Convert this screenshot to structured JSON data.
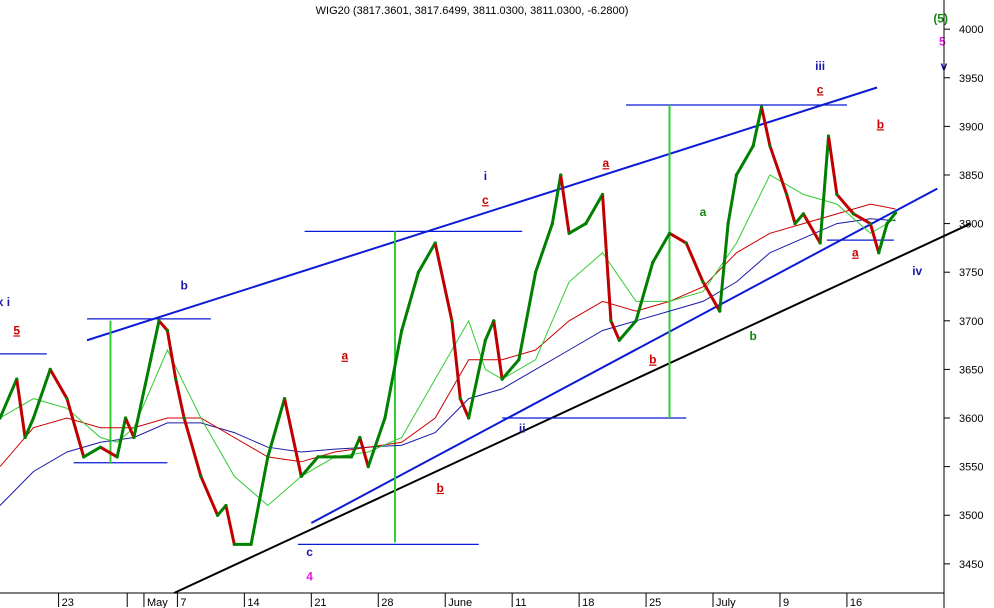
{
  "title": "WIG20 (3817.3601, 3817.6499, 3811.0300, 3811.0300, -6.2800)",
  "colors": {
    "price_candle": "#008000",
    "price_down": "#c00000",
    "ma_fast": "#33cc33",
    "ma_mid": "#cc0000",
    "ma_slow": "#1a1aa6",
    "channel": "#0b1bd6",
    "support": "#000000",
    "green_marker": "#33cc33",
    "wave_red": "#cc0000",
    "wave_blue": "#1a1aa6",
    "wave_green": "#118811",
    "wave_magenta": "#e61ae6"
  },
  "chart_data": {
    "type": "line",
    "title": "WIG20 (3817.3601, 3817.6499, 3811.0300, 3811.0300, -6.2800)",
    "xlabel": "",
    "ylabel": "",
    "ylim": [
      3420,
      4030
    ],
    "yticks": [
      3450,
      3500,
      3550,
      3600,
      3650,
      3700,
      3750,
      3800,
      3850,
      3900,
      3950,
      4000
    ],
    "x_range": [
      0,
      56.4
    ],
    "xticks": [
      {
        "label": "23",
        "x": 3.5
      },
      {
        "label": "",
        "x": 7.6
      },
      {
        "label": "May",
        "x": 8.6
      },
      {
        "label": "7",
        "x": 10.6
      },
      {
        "label": "14",
        "x": 14.6
      },
      {
        "label": "21",
        "x": 18.6
      },
      {
        "label": "28",
        "x": 22.6
      },
      {
        "label": "June",
        "x": 26.6
      },
      {
        "label": "11",
        "x": 30.6
      },
      {
        "label": "18",
        "x": 34.6
      },
      {
        "label": "25",
        "x": 38.6
      },
      {
        "label": "July",
        "x": 42.6
      },
      {
        "label": "9",
        "x": 46.6
      },
      {
        "label": "16",
        "x": 50.6
      }
    ],
    "grid": false,
    "series": [
      {
        "name": "WIG20",
        "x": [
          0,
          1,
          1.5,
          2,
          3,
          4,
          5,
          6,
          7,
          7.5,
          8,
          9,
          9.5,
          10,
          10.5,
          11,
          12,
          13,
          13.5,
          14,
          15,
          16,
          17,
          18,
          19,
          20,
          21,
          21.5,
          22,
          23,
          24,
          25,
          26,
          27,
          27.5,
          28,
          29,
          29.5,
          30,
          31,
          32,
          33,
          33.5,
          34,
          35,
          36,
          36.5,
          37,
          38,
          39,
          40,
          41,
          42,
          43,
          43.5,
          44,
          45,
          45.5,
          46,
          47,
          47.5,
          48,
          49,
          49.5,
          50,
          51,
          52,
          52.5,
          53,
          53.5
        ],
        "y": [
          3600,
          3640,
          3580,
          3600,
          3650,
          3620,
          3560,
          3570,
          3560,
          3600,
          3580,
          3660,
          3700,
          3690,
          3640,
          3600,
          3540,
          3500,
          3510,
          3470,
          3470,
          3560,
          3620,
          3540,
          3560,
          3560,
          3560,
          3580,
          3550,
          3600,
          3690,
          3750,
          3780,
          3700,
          3620,
          3600,
          3680,
          3700,
          3640,
          3660,
          3750,
          3800,
          3850,
          3790,
          3800,
          3830,
          3700,
          3680,
          3700,
          3760,
          3790,
          3780,
          3740,
          3710,
          3800,
          3850,
          3880,
          3920,
          3880,
          3830,
          3800,
          3810,
          3780,
          3890,
          3830,
          3810,
          3800,
          3770,
          3800,
          3811
        ]
      },
      {
        "name": "",
        "x": [
          0,
          2,
          4,
          6,
          7,
          8,
          10,
          12,
          14,
          16,
          18,
          20,
          22,
          24,
          26,
          28,
          29,
          30,
          32,
          34,
          36,
          38,
          40,
          42,
          44,
          46,
          48,
          50,
          52,
          53.5
        ],
        "y": [
          3600,
          3620,
          3610,
          3580,
          3575,
          3590,
          3670,
          3600,
          3540,
          3510,
          3540,
          3560,
          3565,
          3580,
          3640,
          3700,
          3650,
          3640,
          3660,
          3740,
          3770,
          3720,
          3720,
          3730,
          3780,
          3850,
          3830,
          3820,
          3790,
          3805
        ]
      },
      {
        "name": "",
        "x": [
          0,
          2,
          4,
          6,
          8,
          10,
          12,
          14,
          16,
          18,
          20,
          22,
          24,
          26,
          28,
          30,
          32,
          34,
          36,
          38,
          40,
          42,
          44,
          46,
          48,
          50,
          52,
          53.5
        ],
        "y": [
          3550,
          3590,
          3600,
          3590,
          3590,
          3600,
          3600,
          3580,
          3560,
          3555,
          3565,
          3570,
          3575,
          3600,
          3660,
          3660,
          3670,
          3700,
          3720,
          3710,
          3720,
          3735,
          3770,
          3790,
          3800,
          3810,
          3820,
          3815
        ]
      },
      {
        "name": "",
        "x": [
          0,
          2,
          4,
          6,
          8,
          10,
          12,
          14,
          16,
          18,
          20,
          22,
          24,
          26,
          28,
          30,
          32,
          34,
          36,
          38,
          40,
          42,
          44,
          46,
          48,
          50,
          52,
          53.5
        ],
        "y": [
          3510,
          3545,
          3565,
          3575,
          3580,
          3595,
          3595,
          3585,
          3570,
          3565,
          3568,
          3570,
          3572,
          3585,
          3620,
          3630,
          3650,
          3670,
          3690,
          3700,
          3710,
          3720,
          3740,
          3770,
          3785,
          3800,
          3805,
          3803
        ]
      }
    ],
    "trendlines": [
      {
        "name": "channel-upper",
        "from": [
          5.2,
          3680
        ],
        "to": [
          52.4,
          3940
        ]
      },
      {
        "name": "channel-lower",
        "from": [
          18.6,
          3492
        ],
        "to": [
          56,
          3836
        ]
      },
      {
        "name": "support",
        "from": [
          10.4,
          3420
        ],
        "to": [
          58,
          3800
        ]
      },
      {
        "name": "hline-1",
        "from": [
          0,
          3666
        ],
        "to": [
          2.8,
          3666
        ]
      },
      {
        "name": "hline-2",
        "from": [
          5.2,
          3702
        ],
        "to": [
          12.6,
          3702
        ]
      },
      {
        "name": "hline-3",
        "from": [
          4.4,
          3554
        ],
        "to": [
          10.0,
          3554
        ]
      },
      {
        "name": "hline-4",
        "from": [
          18.2,
          3792
        ],
        "to": [
          31.2,
          3792
        ]
      },
      {
        "name": "hline-5",
        "from": [
          17.8,
          3470
        ],
        "to": [
          28.6,
          3470
        ]
      },
      {
        "name": "hline-6",
        "from": [
          30.0,
          3600
        ],
        "to": [
          41.0,
          3600
        ]
      },
      {
        "name": "hline-7",
        "from": [
          37.4,
          3922
        ],
        "to": [
          50.6,
          3922
        ]
      },
      {
        "name": "hline-8",
        "from": [
          49.4,
          3783
        ],
        "to": [
          53.4,
          3783
        ]
      }
    ],
    "markers": [
      {
        "name": "green-bar-1",
        "x": 6.6,
        "from": 3553,
        "to": 3700
      },
      {
        "name": "green-bar-2",
        "x": 23.6,
        "from": 3472,
        "to": 3792
      },
      {
        "name": "green-bar-3",
        "x": 40.0,
        "from": 3600,
        "to": 3922
      }
    ],
    "annotations": [
      {
        "text": "(5)",
        "x": 56.2,
        "y": 4007,
        "color": "wave_green",
        "underline": false
      },
      {
        "text": "5",
        "x": 56.3,
        "y": 3983,
        "color": "wave_magenta",
        "underline": false
      },
      {
        "text": "v",
        "x": 56.4,
        "y": 3958,
        "color": "wave_blue",
        "underline": false
      },
      {
        "text": "iii",
        "x": 49.0,
        "y": 3958,
        "color": "wave_blue",
        "underline": false
      },
      {
        "text": "c",
        "x": 49.0,
        "y": 3934,
        "color": "wave_red",
        "underline": true
      },
      {
        "text": "i",
        "x": 29.0,
        "y": 3845,
        "color": "wave_blue",
        "underline": false
      },
      {
        "text": "c",
        "x": 29.0,
        "y": 3820,
        "color": "wave_red",
        "underline": true
      },
      {
        "text": "a",
        "x": 36.2,
        "y": 3858,
        "color": "wave_red",
        "underline": true
      },
      {
        "text": "a",
        "x": 42.0,
        "y": 3808,
        "color": "wave_green",
        "underline": false
      },
      {
        "text": "b",
        "x": 52.6,
        "y": 3898,
        "color": "wave_red",
        "underline": true
      },
      {
        "text": "a",
        "x": 51.1,
        "y": 3766,
        "color": "wave_red",
        "underline": true
      },
      {
        "text": "iv",
        "x": 54.8,
        "y": 3747,
        "color": "wave_blue",
        "underline": false
      },
      {
        "text": "x i",
        "x": 0.2,
        "y": 3715,
        "color": "wave_blue",
        "underline": false
      },
      {
        "text": "5",
        "x": 1.0,
        "y": 3686,
        "color": "wave_red",
        "underline": true
      },
      {
        "text": "b",
        "x": 11.0,
        "y": 3732,
        "color": "wave_blue",
        "underline": false
      },
      {
        "text": "a",
        "x": 20.6,
        "y": 3660,
        "color": "wave_red",
        "underline": true
      },
      {
        "text": "b",
        "x": 39.0,
        "y": 3656,
        "color": "wave_red",
        "underline": true
      },
      {
        "text": "b",
        "x": 45.0,
        "y": 3680,
        "color": "wave_green",
        "underline": false
      },
      {
        "text": "ii",
        "x": 31.2,
        "y": 3585,
        "color": "wave_blue",
        "underline": false
      },
      {
        "text": "b",
        "x": 26.3,
        "y": 3524,
        "color": "wave_red",
        "underline": true
      },
      {
        "text": "c",
        "x": 18.5,
        "y": 3458,
        "color": "wave_blue",
        "underline": false
      },
      {
        "text": "4",
        "x": 18.5,
        "y": 3433,
        "color": "wave_magenta",
        "underline": false
      }
    ]
  }
}
